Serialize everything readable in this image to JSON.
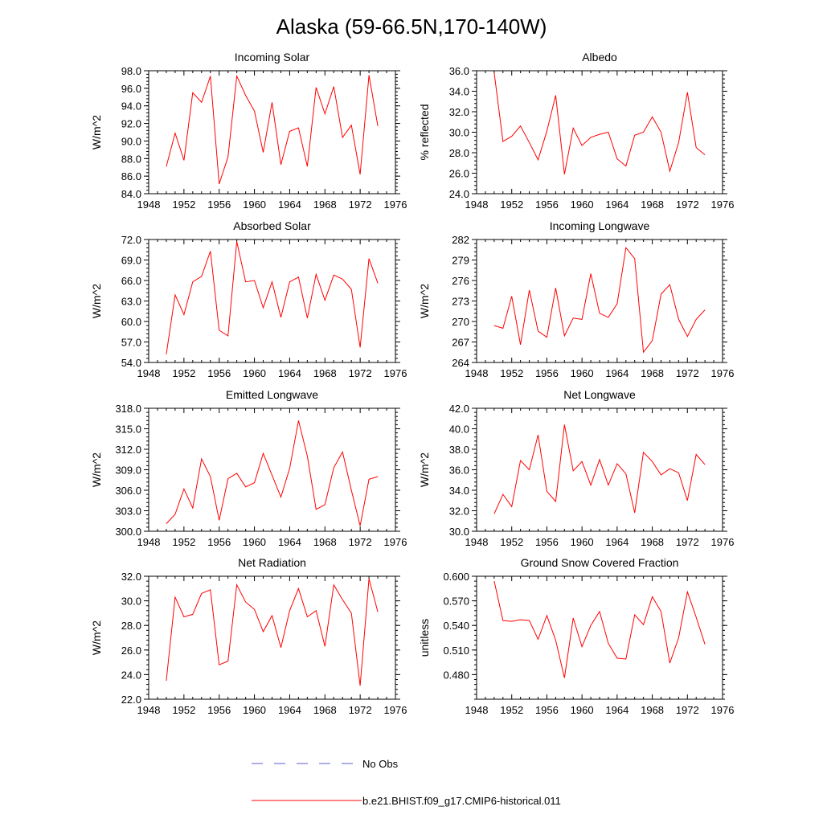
{
  "page_title": "Alaska (59-66.5N,170-140W)",
  "legend": {
    "obs_label": "No Obs",
    "obs_color": "#5b5bd6",
    "model_label": "b.e21.BHIST.f09_g17.CMIP6-historical.011",
    "model_color": "#ff0000"
  },
  "chart_data": [
    {
      "type": "line",
      "title": "Incoming Solar",
      "xlabel": "",
      "ylabel": "W/m^2",
      "xlim": [
        1948,
        1976
      ],
      "ylim": [
        84.0,
        98.0
      ],
      "xticks": [
        "1948",
        "1952",
        "1956",
        "1960",
        "1964",
        "1968",
        "1972",
        "1976"
      ],
      "yticks": [
        "84.0",
        "86.0",
        "88.0",
        "90.0",
        "92.0",
        "94.0",
        "96.0",
        "98.0"
      ],
      "x": [
        1950,
        1951,
        1952,
        1953,
        1954,
        1955,
        1956,
        1957,
        1958,
        1959,
        1960,
        1961,
        1962,
        1963,
        1964,
        1965,
        1966,
        1967,
        1968,
        1969,
        1970,
        1971,
        1972,
        1973,
        1974
      ],
      "series": [
        {
          "name": "b.e21.BHIST.f09_g17.CMIP6-historical.011",
          "values": [
            87.1,
            90.9,
            87.8,
            95.5,
            94.4,
            97.4,
            85.1,
            88.2,
            97.4,
            95.2,
            93.4,
            88.7,
            94.4,
            87.3,
            91.1,
            91.5,
            87.1,
            96.1,
            93.1,
            96.2,
            90.4,
            91.8,
            86.2,
            97.5,
            91.7
          ]
        }
      ]
    },
    {
      "type": "line",
      "title": "Albedo",
      "xlabel": "",
      "ylabel": "% reflected",
      "xlim": [
        1948,
        1976
      ],
      "ylim": [
        24.0,
        36.0
      ],
      "xticks": [
        "1948",
        "1952",
        "1956",
        "1960",
        "1964",
        "1968",
        "1972",
        "1976"
      ],
      "yticks": [
        "24.0",
        "26.0",
        "28.0",
        "30.0",
        "32.0",
        "34.0",
        "36.0"
      ],
      "x": [
        1950,
        1951,
        1952,
        1953,
        1954,
        1955,
        1956,
        1957,
        1958,
        1959,
        1960,
        1961,
        1962,
        1963,
        1964,
        1965,
        1966,
        1967,
        1968,
        1969,
        1970,
        1971,
        1972,
        1973,
        1974
      ],
      "series": [
        {
          "name": "b.e21.BHIST.f09_g17.CMIP6-historical.011",
          "values": [
            35.8,
            29.1,
            29.6,
            30.6,
            29.0,
            27.3,
            30.1,
            33.6,
            25.9,
            30.4,
            28.7,
            29.5,
            29.8,
            30.0,
            27.4,
            26.7,
            29.7,
            30.0,
            31.5,
            30.0,
            26.2,
            29.0,
            33.9,
            28.5,
            27.8
          ]
        }
      ]
    },
    {
      "type": "line",
      "title": "Absorbed Solar",
      "xlabel": "",
      "ylabel": "W/m^2",
      "xlim": [
        1948,
        1976
      ],
      "ylim": [
        54.0,
        72.0
      ],
      "xticks": [
        "1948",
        "1952",
        "1956",
        "1960",
        "1964",
        "1968",
        "1972",
        "1976"
      ],
      "yticks": [
        "54.0",
        "57.0",
        "60.0",
        "63.0",
        "66.0",
        "69.0",
        "72.0"
      ],
      "x": [
        1950,
        1951,
        1952,
        1953,
        1954,
        1955,
        1956,
        1957,
        1958,
        1959,
        1960,
        1961,
        1962,
        1963,
        1964,
        1965,
        1966,
        1967,
        1968,
        1969,
        1970,
        1971,
        1972,
        1973,
        1974
      ],
      "series": [
        {
          "name": "b.e21.BHIST.f09_g17.CMIP6-historical.011",
          "values": [
            55.2,
            63.9,
            61.0,
            65.8,
            66.6,
            70.3,
            58.7,
            57.9,
            71.7,
            65.8,
            66.0,
            62.0,
            65.8,
            60.6,
            65.8,
            66.5,
            60.5,
            66.9,
            63.1,
            66.8,
            66.2,
            64.7,
            56.2,
            69.2,
            65.6
          ]
        }
      ]
    },
    {
      "type": "line",
      "title": "Incoming Longwave",
      "xlabel": "",
      "ylabel": "W/m^2",
      "xlim": [
        1948,
        1976
      ],
      "ylim": [
        264,
        282
      ],
      "xticks": [
        "1948",
        "1952",
        "1956",
        "1960",
        "1964",
        "1968",
        "1972",
        "1976"
      ],
      "yticks": [
        "264",
        "267",
        "270",
        "273",
        "276",
        "279",
        "282"
      ],
      "x": [
        1950,
        1951,
        1952,
        1953,
        1954,
        1955,
        1956,
        1957,
        1958,
        1959,
        1960,
        1961,
        1962,
        1963,
        1964,
        1965,
        1966,
        1967,
        1968,
        1969,
        1970,
        1971,
        1972,
        1973,
        1974
      ],
      "series": [
        {
          "name": "b.e21.BHIST.f09_g17.CMIP6-historical.011",
          "values": [
            269.4,
            269.0,
            273.7,
            266.6,
            274.6,
            268.6,
            267.7,
            274.9,
            267.9,
            270.5,
            270.3,
            277.0,
            271.2,
            270.6,
            272.6,
            280.8,
            279.2,
            265.5,
            267.2,
            274.0,
            275.4,
            270.3,
            267.8,
            270.3,
            271.7
          ]
        }
      ]
    },
    {
      "type": "line",
      "title": "Emitted Longwave",
      "xlabel": "",
      "ylabel": "W/m^2",
      "xlim": [
        1948,
        1976
      ],
      "ylim": [
        300.0,
        318.0
      ],
      "xticks": [
        "1948",
        "1952",
        "1956",
        "1960",
        "1964",
        "1968",
        "1972",
        "1976"
      ],
      "yticks": [
        "300.0",
        "303.0",
        "306.0",
        "309.0",
        "312.0",
        "315.0",
        "318.0"
      ],
      "x": [
        1950,
        1951,
        1952,
        1953,
        1954,
        1955,
        1956,
        1957,
        1958,
        1959,
        1960,
        1961,
        1962,
        1963,
        1964,
        1965,
        1966,
        1967,
        1968,
        1969,
        1970,
        1971,
        1972,
        1973,
        1974
      ],
      "series": [
        {
          "name": "b.e21.BHIST.f09_g17.CMIP6-historical.011",
          "values": [
            301.1,
            302.5,
            306.2,
            303.4,
            310.6,
            308.0,
            301.6,
            307.7,
            308.5,
            306.5,
            307.1,
            311.4,
            308.2,
            305.0,
            309.2,
            316.2,
            311.0,
            303.2,
            303.9,
            309.3,
            311.6,
            306.0,
            300.8,
            307.6,
            308.0
          ]
        }
      ]
    },
    {
      "type": "line",
      "title": "Net Longwave",
      "xlabel": "",
      "ylabel": "W/m^2",
      "xlim": [
        1948,
        1976
      ],
      "ylim": [
        30.0,
        42.0
      ],
      "xticks": [
        "1948",
        "1952",
        "1956",
        "1960",
        "1964",
        "1968",
        "1972",
        "1976"
      ],
      "yticks": [
        "30.0",
        "32.0",
        "34.0",
        "36.0",
        "38.0",
        "40.0",
        "42.0"
      ],
      "x": [
        1950,
        1951,
        1952,
        1953,
        1954,
        1955,
        1956,
        1957,
        1958,
        1959,
        1960,
        1961,
        1962,
        1963,
        1964,
        1965,
        1966,
        1967,
        1968,
        1969,
        1970,
        1971,
        1972,
        1973,
        1974
      ],
      "series": [
        {
          "name": "b.e21.BHIST.f09_g17.CMIP6-historical.011",
          "values": [
            31.7,
            33.6,
            32.4,
            36.9,
            36.0,
            39.4,
            33.9,
            32.9,
            40.4,
            35.9,
            36.8,
            34.5,
            37.0,
            34.5,
            36.6,
            35.6,
            31.8,
            37.7,
            36.8,
            35.5,
            36.1,
            35.7,
            33.0,
            37.5,
            36.5
          ]
        }
      ]
    },
    {
      "type": "line",
      "title": "Net Radiation",
      "xlabel": "",
      "ylabel": "W/m^2",
      "xlim": [
        1948,
        1976
      ],
      "ylim": [
        22.0,
        32.0
      ],
      "xticks": [
        "1948",
        "1952",
        "1956",
        "1960",
        "1964",
        "1968",
        "1972",
        "1976"
      ],
      "yticks": [
        "22.0",
        "24.0",
        "26.0",
        "28.0",
        "30.0",
        "32.0"
      ],
      "x": [
        1950,
        1951,
        1952,
        1953,
        1954,
        1955,
        1956,
        1957,
        1958,
        1959,
        1960,
        1961,
        1962,
        1963,
        1964,
        1965,
        1966,
        1967,
        1968,
        1969,
        1970,
        1971,
        1972,
        1973,
        1974
      ],
      "series": [
        {
          "name": "b.e21.BHIST.f09_g17.CMIP6-historical.011",
          "values": [
            23.5,
            30.3,
            28.7,
            28.9,
            30.6,
            30.9,
            24.8,
            25.1,
            31.3,
            29.9,
            29.3,
            27.5,
            28.8,
            26.2,
            29.2,
            31.0,
            28.7,
            29.2,
            26.3,
            31.3,
            30.1,
            29.0,
            23.1,
            31.8,
            29.1
          ]
        }
      ]
    },
    {
      "type": "line",
      "title": "Ground Snow Covered Fraction",
      "xlabel": "",
      "ylabel": "unitless",
      "xlim": [
        1948,
        1976
      ],
      "ylim": [
        0.45,
        0.6
      ],
      "xticks": [
        "1948",
        "1952",
        "1956",
        "1960",
        "1964",
        "1968",
        "1972",
        "1976"
      ],
      "yticks": [
        "0.480",
        "0.510",
        "0.540",
        "0.570",
        "0.600"
      ],
      "x": [
        1950,
        1951,
        1952,
        1953,
        1954,
        1955,
        1956,
        1957,
        1958,
        1959,
        1960,
        1961,
        1962,
        1963,
        1964,
        1965,
        1966,
        1967,
        1968,
        1969,
        1970,
        1971,
        1972,
        1973,
        1974
      ],
      "series": [
        {
          "name": "b.e21.BHIST.f09_g17.CMIP6-historical.011",
          "values": [
            0.594,
            0.546,
            0.545,
            0.547,
            0.546,
            0.523,
            0.552,
            0.522,
            0.476,
            0.549,
            0.514,
            0.54,
            0.557,
            0.518,
            0.5,
            0.499,
            0.553,
            0.541,
            0.575,
            0.557,
            0.494,
            0.525,
            0.581,
            0.55,
            0.517
          ]
        }
      ]
    }
  ]
}
